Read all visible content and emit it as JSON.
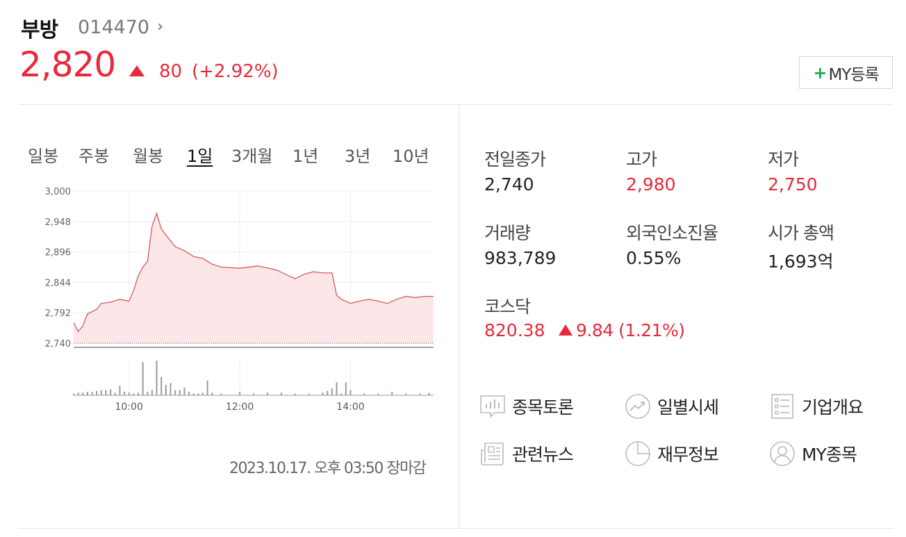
{
  "header": {
    "name": "부방",
    "code": "014470",
    "price": "2,820",
    "change_value": "80",
    "change_percent": "(+2.92%)",
    "my_button_label": "MY등록"
  },
  "period_tabs": [
    {
      "label": "일봉",
      "active": false
    },
    {
      "label": "주봉",
      "active": false
    },
    {
      "label": "월봉",
      "active": false
    },
    {
      "label": "1일",
      "active": true
    },
    {
      "label": "3개월",
      "active": false
    },
    {
      "label": "1년",
      "active": false
    },
    {
      "label": "3년",
      "active": false
    },
    {
      "label": "10년",
      "active": false
    }
  ],
  "chart_data": {
    "type": "area",
    "y_ticks": [
      "3,000",
      "2,948",
      "2,896",
      "2,844",
      "2,792",
      "2,740"
    ],
    "ylim": [
      2740,
      3000
    ],
    "previous_close": 2740,
    "x_ticks": [
      "10:00",
      "12:00",
      "14:00"
    ],
    "time_range": [
      "09:00",
      "15:30"
    ],
    "price_series": [
      {
        "t": "09:00",
        "v": 2775
      },
      {
        "t": "09:05",
        "v": 2760
      },
      {
        "t": "09:10",
        "v": 2770
      },
      {
        "t": "09:15",
        "v": 2790
      },
      {
        "t": "09:25",
        "v": 2798
      },
      {
        "t": "09:30",
        "v": 2808
      },
      {
        "t": "09:40",
        "v": 2810
      },
      {
        "t": "09:50",
        "v": 2815
      },
      {
        "t": "10:00",
        "v": 2812
      },
      {
        "t": "10:05",
        "v": 2830
      },
      {
        "t": "10:10",
        "v": 2855
      },
      {
        "t": "10:15",
        "v": 2870
      },
      {
        "t": "10:20",
        "v": 2880
      },
      {
        "t": "10:25",
        "v": 2940
      },
      {
        "t": "10:30",
        "v": 2962
      },
      {
        "t": "10:35",
        "v": 2935
      },
      {
        "t": "10:40",
        "v": 2925
      },
      {
        "t": "10:45",
        "v": 2915
      },
      {
        "t": "10:50",
        "v": 2905
      },
      {
        "t": "11:00",
        "v": 2898
      },
      {
        "t": "11:10",
        "v": 2888
      },
      {
        "t": "11:20",
        "v": 2885
      },
      {
        "t": "11:30",
        "v": 2875
      },
      {
        "t": "11:40",
        "v": 2870
      },
      {
        "t": "12:00",
        "v": 2868
      },
      {
        "t": "12:20",
        "v": 2872
      },
      {
        "t": "12:40",
        "v": 2865
      },
      {
        "t": "13:00",
        "v": 2850
      },
      {
        "t": "13:10",
        "v": 2858
      },
      {
        "t": "13:20",
        "v": 2862
      },
      {
        "t": "13:30",
        "v": 2860
      },
      {
        "t": "13:40",
        "v": 2860
      },
      {
        "t": "13:45",
        "v": 2822
      },
      {
        "t": "13:50",
        "v": 2815
      },
      {
        "t": "14:00",
        "v": 2808
      },
      {
        "t": "14:10",
        "v": 2812
      },
      {
        "t": "14:20",
        "v": 2815
      },
      {
        "t": "14:30",
        "v": 2812
      },
      {
        "t": "14:40",
        "v": 2808
      },
      {
        "t": "14:50",
        "v": 2815
      },
      {
        "t": "15:00",
        "v": 2820
      },
      {
        "t": "15:10",
        "v": 2818
      },
      {
        "t": "15:20",
        "v": 2820
      },
      {
        "t": "15:30",
        "v": 2820
      }
    ],
    "volume_series": [
      {
        "t": "09:00",
        "v": 1
      },
      {
        "t": "09:05",
        "v": 1.5
      },
      {
        "t": "09:10",
        "v": 1.5
      },
      {
        "t": "09:15",
        "v": 2
      },
      {
        "t": "09:20",
        "v": 2
      },
      {
        "t": "09:25",
        "v": 2.5
      },
      {
        "t": "09:30",
        "v": 3
      },
      {
        "t": "09:35",
        "v": 3
      },
      {
        "t": "09:40",
        "v": 3.5
      },
      {
        "t": "09:45",
        "v": 1.5
      },
      {
        "t": "09:50",
        "v": 5.5
      },
      {
        "t": "09:55",
        "v": 2
      },
      {
        "t": "10:00",
        "v": 1.5
      },
      {
        "t": "10:05",
        "v": 1
      },
      {
        "t": "10:10",
        "v": 1.5
      },
      {
        "t": "10:15",
        "v": 19
      },
      {
        "t": "10:20",
        "v": 2
      },
      {
        "t": "10:25",
        "v": 3
      },
      {
        "t": "10:30",
        "v": 20
      },
      {
        "t": "10:35",
        "v": 10.5
      },
      {
        "t": "10:40",
        "v": 6
      },
      {
        "t": "10:45",
        "v": 7
      },
      {
        "t": "10:50",
        "v": 3
      },
      {
        "t": "10:55",
        "v": 3
      },
      {
        "t": "11:00",
        "v": 4.5
      },
      {
        "t": "11:05",
        "v": 2
      },
      {
        "t": "11:10",
        "v": 1
      },
      {
        "t": "11:15",
        "v": 1
      },
      {
        "t": "11:20",
        "v": 1.5
      },
      {
        "t": "11:25",
        "v": 8.5
      },
      {
        "t": "11:30",
        "v": 1.5
      },
      {
        "t": "11:40",
        "v": 1
      },
      {
        "t": "12:00",
        "v": 2
      },
      {
        "t": "12:15",
        "v": 1
      },
      {
        "t": "12:30",
        "v": 1.5
      },
      {
        "t": "12:45",
        "v": 1.5
      },
      {
        "t": "13:00",
        "v": 1
      },
      {
        "t": "13:15",
        "v": 1
      },
      {
        "t": "13:30",
        "v": 1.5
      },
      {
        "t": "13:35",
        "v": 2.5
      },
      {
        "t": "13:40",
        "v": 4
      },
      {
        "t": "13:45",
        "v": 7.5
      },
      {
        "t": "13:50",
        "v": 1
      },
      {
        "t": "13:55",
        "v": 7.5
      },
      {
        "t": "14:00",
        "v": 3
      },
      {
        "t": "14:15",
        "v": 1
      },
      {
        "t": "14:30",
        "v": 1
      },
      {
        "t": "14:45",
        "v": 2
      },
      {
        "t": "15:00",
        "v": 1
      },
      {
        "t": "15:15",
        "v": 1
      },
      {
        "t": "15:25",
        "v": 1.5
      }
    ]
  },
  "timestamp": "2023.10.17. 오후 03:50 장마감",
  "stats": [
    {
      "label": "전일종가",
      "value": "2,740",
      "color": "#222222"
    },
    {
      "label": "고가",
      "value": "2,980",
      "color": "#e8293b"
    },
    {
      "label": "저가",
      "value": "2,750",
      "color": "#e8293b"
    },
    {
      "label": "거래량",
      "value": "983,789",
      "color": "#222222"
    },
    {
      "label": "외국인소진율",
      "value": "0.55%",
      "color": "#222222"
    },
    {
      "label": "시가 총액",
      "value": "1,693억",
      "color": "#222222"
    }
  ],
  "kosdaq": {
    "label": "코스닥",
    "value": "820.38",
    "change": "9.84 (1.21%)"
  },
  "links": [
    {
      "label": "종목토론",
      "icon": "chart-board-icon"
    },
    {
      "label": "일별시세",
      "icon": "trend-icon"
    },
    {
      "label": "기업개요",
      "icon": "list-doc-icon"
    },
    {
      "label": "관련뉴스",
      "icon": "news-icon"
    },
    {
      "label": "재무정보",
      "icon": "pie-icon"
    },
    {
      "label": "MY종목",
      "icon": "user-icon"
    }
  ],
  "colors": {
    "up": "#e8293b",
    "area_fill": "#fde6e8",
    "line": "#d45a5f",
    "volume": "#9a9a9a",
    "my_plus": "#1fa84a"
  }
}
